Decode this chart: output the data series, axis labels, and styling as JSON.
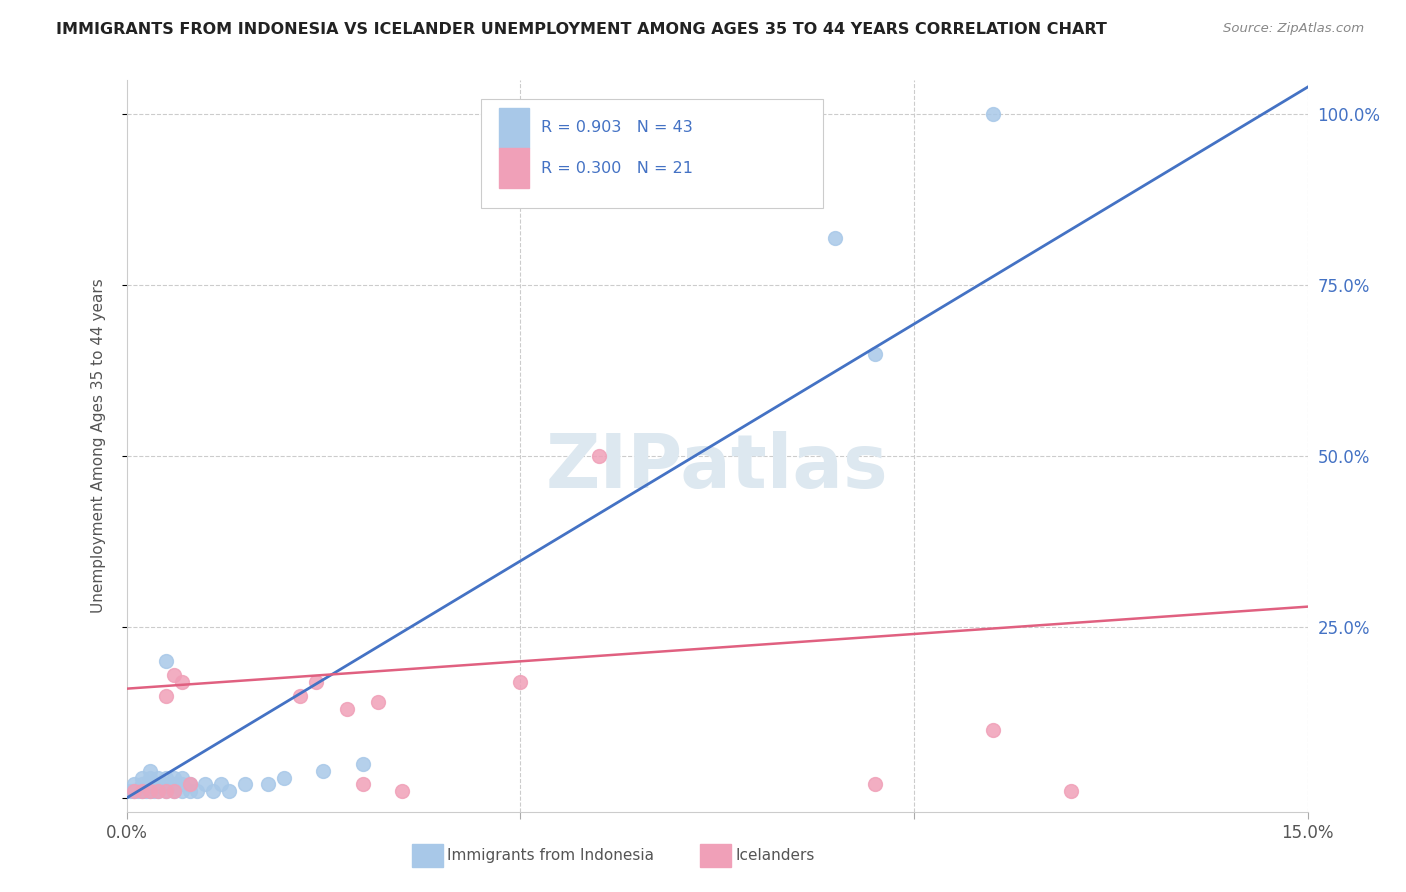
{
  "title": "IMMIGRANTS FROM INDONESIA VS ICELANDER UNEMPLOYMENT AMONG AGES 35 TO 44 YEARS CORRELATION CHART",
  "source": "Source: ZipAtlas.com",
  "ylabel": "Unemployment Among Ages 35 to 44 years",
  "xlim": [
    0.0,
    0.15
  ],
  "ylim": [
    -0.02,
    1.05
  ],
  "blue_color": "#a8c8e8",
  "blue_line_color": "#4472c4",
  "pink_color": "#f0a0b8",
  "pink_line_color": "#e06080",
  "right_axis_color": "#4472c4",
  "legend_R1": "R = 0.903",
  "legend_N1": "N = 43",
  "legend_R2": "R = 0.300",
  "legend_N2": "N = 21",
  "legend_label1": "Immigrants from Indonesia",
  "legend_label2": "Icelanders",
  "watermark": "ZIPatlas",
  "blue_scatter_x": [
    0.0005,
    0.001,
    0.001,
    0.0015,
    0.002,
    0.002,
    0.002,
    0.0025,
    0.003,
    0.003,
    0.003,
    0.003,
    0.003,
    0.0035,
    0.004,
    0.004,
    0.004,
    0.004,
    0.005,
    0.005,
    0.005,
    0.005,
    0.006,
    0.006,
    0.006,
    0.007,
    0.007,
    0.007,
    0.008,
    0.008,
    0.009,
    0.01,
    0.011,
    0.012,
    0.013,
    0.015,
    0.018,
    0.02,
    0.025,
    0.03,
    0.09,
    0.095,
    0.11
  ],
  "blue_scatter_y": [
    0.01,
    0.01,
    0.02,
    0.01,
    0.01,
    0.02,
    0.03,
    0.01,
    0.01,
    0.02,
    0.02,
    0.03,
    0.04,
    0.01,
    0.01,
    0.02,
    0.02,
    0.03,
    0.01,
    0.02,
    0.03,
    0.2,
    0.01,
    0.02,
    0.03,
    0.01,
    0.02,
    0.03,
    0.01,
    0.02,
    0.01,
    0.02,
    0.01,
    0.02,
    0.01,
    0.02,
    0.02,
    0.03,
    0.04,
    0.05,
    0.82,
    0.65,
    1.0
  ],
  "pink_scatter_x": [
    0.001,
    0.002,
    0.003,
    0.004,
    0.005,
    0.005,
    0.006,
    0.006,
    0.007,
    0.008,
    0.022,
    0.024,
    0.028,
    0.03,
    0.032,
    0.035,
    0.05,
    0.06,
    0.095,
    0.11,
    0.12
  ],
  "pink_scatter_y": [
    0.01,
    0.01,
    0.01,
    0.01,
    0.01,
    0.15,
    0.01,
    0.18,
    0.17,
    0.02,
    0.15,
    0.17,
    0.13,
    0.02,
    0.14,
    0.01,
    0.17,
    0.5,
    0.02,
    0.1,
    0.01
  ],
  "blue_line_x": [
    0.0,
    0.15
  ],
  "blue_line_y": [
    0.0,
    1.04
  ],
  "pink_line_x": [
    0.0,
    0.15
  ],
  "pink_line_y": [
    0.16,
    0.28
  ]
}
